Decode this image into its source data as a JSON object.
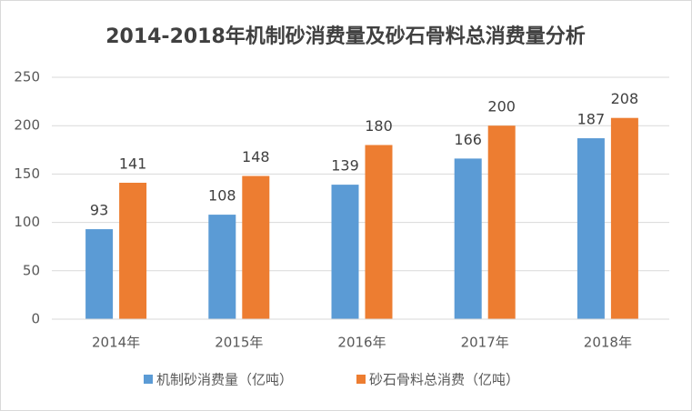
{
  "chart_data": {
    "type": "bar",
    "title": "2014-2018年机制砂消费量及砂石骨料总消费量分析",
    "categories": [
      "2014年",
      "2015年",
      "2016年",
      "2017年",
      "2018年"
    ],
    "series": [
      {
        "name": "机制砂消费量（亿吨）",
        "color": "#5b9bd5",
        "values": [
          93,
          108,
          139,
          166,
          187
        ]
      },
      {
        "name": "砂石骨料总消费（亿吨）",
        "color": "#ed7d31",
        "values": [
          141,
          148,
          180,
          200,
          208
        ]
      }
    ],
    "ylim": [
      0,
      250
    ],
    "yticks": [
      0,
      50,
      100,
      150,
      200,
      250
    ],
    "grid": true,
    "legend": "bottom"
  }
}
